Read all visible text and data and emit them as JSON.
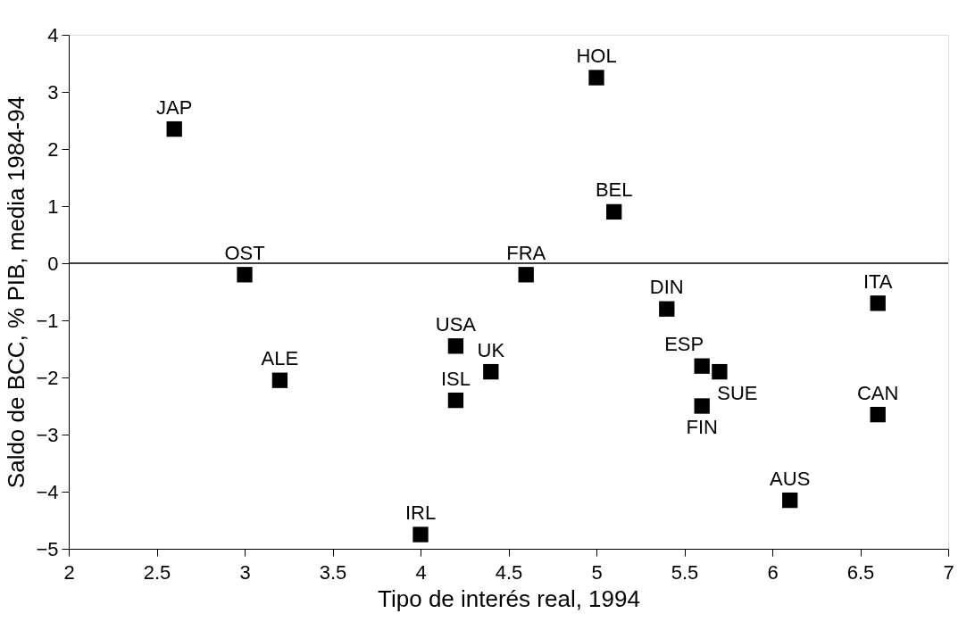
{
  "chart_data": {
    "type": "scatter",
    "xlabel": "Tipo de interés real, 1994",
    "ylabel": "Saldo de BCC, % PIB, media 1984-94",
    "x": [
      2.6,
      3.0,
      3.2,
      4.2,
      4.2,
      4.0,
      4.4,
      5.0,
      5.1,
      4.6,
      5.4,
      6.6,
      5.6,
      5.7,
      5.6,
      6.6,
      6.1
    ],
    "series": [
      {
        "color": "#000000",
        "values": [
          2.35,
          -0.2,
          -2.05,
          -1.45,
          -2.4,
          -4.75,
          -1.9,
          3.25,
          0.9,
          -0.2,
          -0.8,
          -0.7,
          -1.8,
          -1.9,
          -2.5,
          -2.65,
          -4.15
        ]
      }
    ],
    "annotations": [
      {
        "text": "JAP",
        "x": 2.6,
        "y": 2.35
      },
      {
        "text": "OST",
        "x": 3.0,
        "y": -0.2
      },
      {
        "text": "ALE",
        "x": 3.2,
        "y": -2.05
      },
      {
        "text": "USA",
        "x": 4.2,
        "y": -1.45
      },
      {
        "text": "ISL",
        "x": 4.2,
        "y": -2.4
      },
      {
        "text": "IRL",
        "x": 4.0,
        "y": -4.75
      },
      {
        "text": "UK",
        "x": 4.4,
        "y": -1.9
      },
      {
        "text": "HOL",
        "x": 5.0,
        "y": 3.25
      },
      {
        "text": "BEL",
        "x": 5.1,
        "y": 0.9
      },
      {
        "text": "FRA",
        "x": 4.6,
        "y": -0.2
      },
      {
        "text": "DIN",
        "x": 5.4,
        "y": -0.8
      },
      {
        "text": "ITA",
        "x": 6.6,
        "y": -0.7
      },
      {
        "text": "ESP",
        "x": 5.6,
        "y": -1.8
      },
      {
        "text": "SUE",
        "x": 5.7,
        "y": -1.9
      },
      {
        "text": "FIN",
        "x": 5.6,
        "y": -2.5
      },
      {
        "text": "CAN",
        "x": 6.6,
        "y": -2.65
      },
      {
        "text": "AUS",
        "x": 6.1,
        "y": -4.15
      }
    ],
    "ref_lines": [
      {
        "axis": "y",
        "value": 0,
        "color": "#000000"
      }
    ],
    "xlim": [
      2,
      7
    ],
    "xticks": [
      2,
      2.5,
      3,
      3.5,
      4,
      4.5,
      5,
      5.5,
      6,
      6.5,
      7
    ],
    "ylim": [
      -5,
      4
    ],
    "yticks": [
      -5,
      -4,
      -3,
      -2,
      -1,
      0,
      1,
      2,
      3,
      4
    ],
    "grid": false,
    "marker": "square"
  }
}
